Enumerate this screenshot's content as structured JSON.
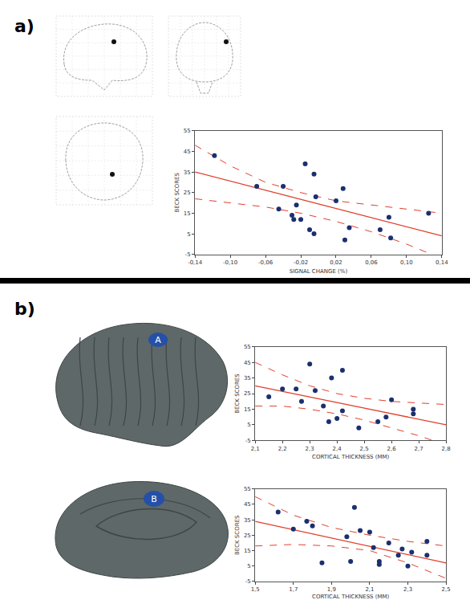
{
  "panel_labels": [
    "a)",
    "b)"
  ],
  "region_labels": [
    "A",
    "B"
  ],
  "chart_data": [
    {
      "type": "scatter",
      "marker": "circle",
      "color": "#1c2f6e",
      "grid": false,
      "x_label": "SIGNAL CHANGE (%)",
      "y_label": "BECK SCORES",
      "x": [
        -0.118,
        -0.07,
        -0.045,
        -0.04,
        -0.03,
        -0.028,
        -0.025,
        -0.02,
        -0.015,
        -0.01,
        -0.005,
        -0.005,
        -0.003,
        0.02,
        0.028,
        0.03,
        0.035,
        0.07,
        0.08,
        0.082,
        0.125
      ],
      "values": [
        43,
        28,
        17,
        28,
        14,
        12,
        19,
        12,
        39,
        7,
        5,
        34,
        23,
        21,
        27,
        2,
        8,
        7,
        13,
        3,
        15
      ],
      "fit": {
        "x": [
          -0.14,
          0.14
        ],
        "values": [
          35,
          4
        ],
        "color": "#e0402e",
        "line_style": "solid"
      },
      "ci": {
        "x": [
          -0.14,
          -0.1,
          -0.06,
          -0.02,
          0.02,
          0.06,
          0.1,
          0.14
        ],
        "upper": [
          48,
          38,
          30,
          25,
          21,
          19,
          17,
          15
        ],
        "lower": [
          22,
          20,
          18,
          15,
          11,
          6,
          0,
          -7
        ],
        "color": "#e0402e",
        "line_style": "dashed"
      },
      "xlim": [
        -0.14,
        0.14
      ],
      "xticks": [
        {
          "value": -0.14,
          "label": "-0,14"
        },
        {
          "value": -0.1,
          "label": "-0,10"
        },
        {
          "value": -0.06,
          "label": "-0,06"
        },
        {
          "value": -0.02,
          "label": "-0,02"
        },
        {
          "value": 0.02,
          "label": "0,02"
        },
        {
          "value": 0.06,
          "label": "0,06"
        },
        {
          "value": 0.1,
          "label": "0,10"
        },
        {
          "value": 0.14,
          "label": "0,14"
        }
      ],
      "ylim": [
        -5,
        55
      ],
      "yticks": [
        -5,
        5,
        15,
        25,
        35,
        45,
        55
      ]
    },
    {
      "type": "scatter",
      "marker": "circle",
      "color": "#1c2f6e",
      "grid": false,
      "x_label": "CORTICAL THICKNESS (MM)",
      "y_label": "BECK SCORES",
      "x": [
        2.15,
        2.2,
        2.25,
        2.27,
        2.3,
        2.32,
        2.35,
        2.37,
        2.38,
        2.4,
        2.42,
        2.42,
        2.48,
        2.55,
        2.58,
        2.6,
        2.68,
        2.68
      ],
      "values": [
        23,
        28,
        28,
        20,
        44,
        27,
        17,
        7,
        35,
        9,
        40,
        14,
        3,
        7,
        10,
        21,
        15,
        12
      ],
      "fit": {
        "x": [
          2.1,
          2.8
        ],
        "values": [
          30,
          5
        ],
        "color": "#e0402e",
        "line_style": "solid"
      },
      "ci": {
        "x": [
          2.1,
          2.2,
          2.3,
          2.4,
          2.5,
          2.6,
          2.7,
          2.8
        ],
        "upper": [
          45,
          37,
          30,
          25,
          22,
          20,
          19,
          18
        ],
        "lower": [
          17,
          17,
          15,
          12,
          8,
          3,
          -2,
          -8
        ],
        "color": "#e0402e",
        "line_style": "dashed"
      },
      "xlim": [
        2.1,
        2.8
      ],
      "xticks": [
        {
          "value": 2.1,
          "label": "2,1"
        },
        {
          "value": 2.2,
          "label": "2,2"
        },
        {
          "value": 2.3,
          "label": "2,3"
        },
        {
          "value": 2.4,
          "label": "2,4"
        },
        {
          "value": 2.5,
          "label": "2,5"
        },
        {
          "value": 2.6,
          "label": "2,6"
        },
        {
          "value": 2.7,
          "label": "2,7"
        },
        {
          "value": 2.8,
          "label": "2,8"
        }
      ],
      "ylim": [
        -5,
        55
      ],
      "yticks": [
        -5,
        5,
        15,
        25,
        35,
        45,
        55
      ]
    },
    {
      "type": "scatter",
      "marker": "circle",
      "color": "#1c2f6e",
      "grid": false,
      "x_label": "CORTICAL THICKNESS (MM)",
      "y_label": "BECK SCORES",
      "x": [
        1.62,
        1.7,
        1.77,
        1.8,
        1.85,
        1.98,
        2.0,
        2.02,
        2.05,
        2.1,
        2.12,
        2.15,
        2.15,
        2.2,
        2.25,
        2.27,
        2.3,
        2.32,
        2.4,
        2.4
      ],
      "values": [
        40,
        29,
        34,
        31,
        7,
        24,
        8,
        43,
        28,
        27,
        17,
        6,
        8,
        20,
        12,
        16,
        5,
        14,
        21,
        12
      ],
      "fit": {
        "x": [
          1.5,
          2.5
        ],
        "values": [
          34,
          7
        ],
        "color": "#e0402e",
        "line_style": "solid"
      },
      "ci": {
        "x": [
          1.5,
          1.7,
          1.9,
          2.1,
          2.3,
          2.5
        ],
        "upper": [
          50,
          38,
          30,
          25,
          21,
          18
        ],
        "lower": [
          18,
          19,
          18,
          15,
          7,
          -3
        ],
        "color": "#e0402e",
        "line_style": "dashed"
      },
      "xlim": [
        1.5,
        2.5
      ],
      "xticks": [
        {
          "value": 1.5,
          "label": "1,5"
        },
        {
          "value": 1.7,
          "label": "1,7"
        },
        {
          "value": 1.9,
          "label": "1,9"
        },
        {
          "value": 2.1,
          "label": "2,1"
        },
        {
          "value": 2.3,
          "label": "2,3"
        },
        {
          "value": 2.5,
          "label": "2,5"
        }
      ],
      "ylim": [
        -5,
        55
      ],
      "yticks": [
        -5,
        5,
        15,
        25,
        35,
        45,
        55
      ]
    }
  ]
}
